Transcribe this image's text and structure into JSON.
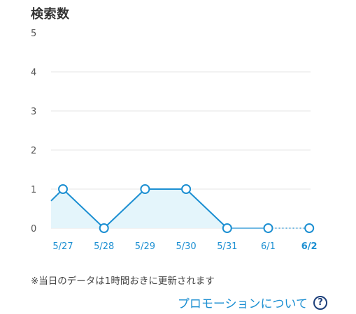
{
  "title": "検索数",
  "note": "※当日のデータは1時間おきに更新されます",
  "promotion_link": {
    "label": "プロモーションについて",
    "icon": "question-circle-icon"
  },
  "colors": {
    "line": "#1c8fd2",
    "fill": "#e4f5fb",
    "grid": "#e6e6e6",
    "axis_label": "#555555",
    "date_label": "#1c8fd2"
  },
  "chart_data": {
    "type": "line",
    "title": "検索数",
    "xlabel": "",
    "ylabel": "",
    "categories": [
      "5/27",
      "5/28",
      "5/29",
      "5/30",
      "5/31",
      "6/1",
      "6/2"
    ],
    "values": [
      1,
      0,
      1,
      1,
      0,
      0,
      0
    ],
    "ylim": [
      0,
      5
    ],
    "yticks": [
      0,
      1,
      2,
      3,
      4,
      5
    ],
    "current_label": "6/2",
    "lead_in_value": 0.7,
    "grid": true,
    "filled_area": true,
    "last_segment_style": "dotted"
  }
}
